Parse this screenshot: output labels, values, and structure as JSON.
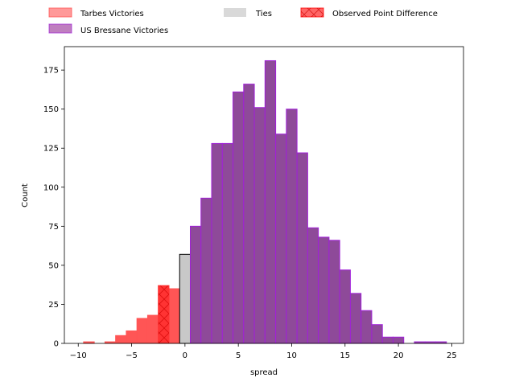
{
  "chart_data": {
    "type": "bar",
    "xlabel": "spread",
    "ylabel": "Count",
    "xlim": [
      -11.3,
      26.1
    ],
    "ylim": [
      0,
      190
    ],
    "xticks": [
      -10,
      -5,
      0,
      5,
      10,
      15,
      20,
      25
    ],
    "yticks": [
      0,
      25,
      50,
      75,
      100,
      125,
      150,
      175
    ],
    "bin_width": 1,
    "legend_position": "top (outside, above plot)",
    "legend": [
      {
        "label": "Tarbes Victories",
        "color": "#ff5555",
        "alpha": 0.6
      },
      {
        "label": "Ties",
        "color": "#c0c0c0",
        "alpha": 0.6
      },
      {
        "label": "Observed Point Difference",
        "color": "#ff0000",
        "alpha": 0.6,
        "hatch": "x"
      },
      {
        "label": "US Bressane Victories",
        "color": "#800080",
        "alpha": 0.5
      }
    ],
    "series": [
      {
        "name": "Tarbes Victories",
        "color": "#ff5555",
        "bins": [
          {
            "x0": -9.5,
            "x1": -8.5,
            "count": 1
          },
          {
            "x0": -7.5,
            "x1": -6.5,
            "count": 1
          },
          {
            "x0": -6.5,
            "x1": -5.5,
            "count": 5
          },
          {
            "x0": -5.5,
            "x1": -4.5,
            "count": 8
          },
          {
            "x0": -4.5,
            "x1": -3.5,
            "count": 16
          },
          {
            "x0": -3.5,
            "x1": -2.5,
            "count": 18
          },
          {
            "x0": -1.5,
            "x1": -0.5,
            "count": 35
          }
        ]
      },
      {
        "name": "Observed Point Difference",
        "color": "#ff0000",
        "bins": [
          {
            "x0": -2.5,
            "x1": -1.5,
            "count": 37
          }
        ]
      },
      {
        "name": "Ties",
        "color": "#c8c8c8",
        "bins": [
          {
            "x0": -0.5,
            "x1": 0.5,
            "count": 57
          }
        ]
      },
      {
        "name": "US Bressane Victories",
        "color": "#8e4a99",
        "edge": "#a020d8",
        "bins": [
          {
            "x0": 0.5,
            "x1": 1.5,
            "count": 75
          },
          {
            "x0": 1.5,
            "x1": 2.5,
            "count": 93
          },
          {
            "x0": 2.5,
            "x1": 3.5,
            "count": 128
          },
          {
            "x0": 3.5,
            "x1": 4.5,
            "count": 128
          },
          {
            "x0": 4.5,
            "x1": 5.5,
            "count": 161
          },
          {
            "x0": 5.5,
            "x1": 6.5,
            "count": 166
          },
          {
            "x0": 6.5,
            "x1": 7.5,
            "count": 151
          },
          {
            "x0": 7.5,
            "x1": 8.5,
            "count": 181
          },
          {
            "x0": 8.5,
            "x1": 9.5,
            "count": 134
          },
          {
            "x0": 9.5,
            "x1": 10.5,
            "count": 150
          },
          {
            "x0": 10.5,
            "x1": 11.5,
            "count": 122
          },
          {
            "x0": 11.5,
            "x1": 12.5,
            "count": 74
          },
          {
            "x0": 12.5,
            "x1": 13.5,
            "count": 68
          },
          {
            "x0": 13.5,
            "x1": 14.5,
            "count": 66
          },
          {
            "x0": 14.5,
            "x1": 15.5,
            "count": 47
          },
          {
            "x0": 15.5,
            "x1": 16.5,
            "count": 32
          },
          {
            "x0": 16.5,
            "x1": 17.5,
            "count": 21
          },
          {
            "x0": 17.5,
            "x1": 18.5,
            "count": 12
          },
          {
            "x0": 18.5,
            "x1": 19.5,
            "count": 4
          },
          {
            "x0": 19.5,
            "x1": 20.5,
            "count": 4
          },
          {
            "x0": 21.5,
            "x1": 22.5,
            "count": 1
          },
          {
            "x0": 22.5,
            "x1": 23.5,
            "count": 1
          },
          {
            "x0": 23.5,
            "x1": 24.5,
            "count": 1
          }
        ]
      }
    ]
  }
}
